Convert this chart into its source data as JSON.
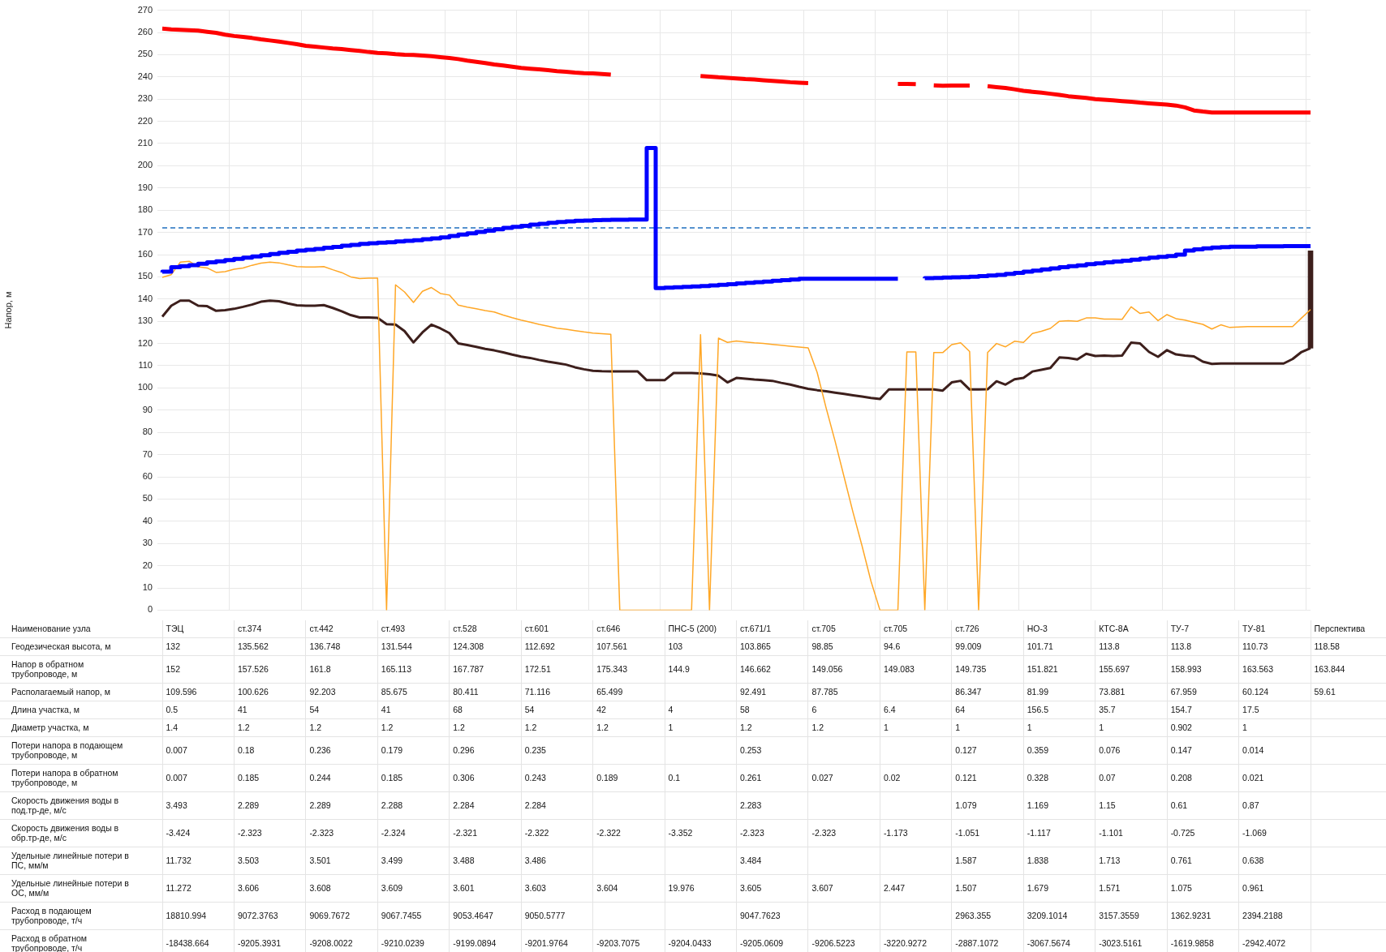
{
  "chart_data": [
    {
      "type": "line",
      "ylabel": "Напор, м",
      "grid": true,
      "ylim": [
        0,
        270
      ],
      "yticks": [
        0,
        10,
        20,
        30,
        40,
        50,
        60,
        70,
        80,
        90,
        100,
        110,
        120,
        130,
        140,
        150,
        160,
        170,
        180,
        190,
        200,
        210,
        220,
        230,
        240,
        250,
        260,
        270
      ],
      "ref_lines": [
        {
          "axis": "y",
          "value": 172,
          "color": "#1f6fbf",
          "line_style": "dashed"
        }
      ],
      "categories": [
        null,
        null,
        null,
        null,
        null,
        null,
        null,
        null,
        null,
        null,
        null,
        null,
        null,
        null,
        null,
        null,
        null,
        null,
        null,
        null,
        null,
        null,
        null,
        null,
        null,
        null,
        null,
        null,
        null,
        null,
        null,
        null,
        null,
        null,
        null,
        null,
        null,
        null,
        null,
        null,
        null,
        null,
        null,
        null,
        null,
        null,
        null,
        null,
        null,
        null,
        null,
        null,
        null,
        null,
        null,
        null,
        null,
        null,
        null,
        null,
        null,
        null,
        null,
        null,
        null,
        null,
        null,
        null,
        null,
        null,
        null,
        null,
        null,
        null,
        null,
        null,
        null,
        null,
        null,
        null,
        null,
        null,
        null,
        null,
        null,
        null,
        null,
        null,
        null,
        null,
        null,
        null,
        null,
        null,
        null,
        null,
        null,
        null,
        null,
        null,
        null,
        null,
        null,
        null,
        null,
        null,
        null,
        null,
        null,
        null,
        null,
        null,
        null,
        null,
        null,
        null,
        null,
        null,
        null,
        null,
        null,
        null,
        null,
        null,
        null,
        null,
        null,
        null,
        null
      ],
      "series": [
        {
          "color": "#ff0000",
          "values": [
            261.7,
            261.4,
            261.2,
            261.0,
            260.8,
            260.3,
            259.8,
            259.0,
            258.4,
            258.0,
            257.5,
            256.9,
            256.4,
            255.9,
            255.3,
            254.7,
            254.0,
            253.6,
            253.2,
            252.8,
            252.5,
            252.1,
            251.7,
            251.2,
            250.8,
            250.6,
            250.2,
            250.0,
            249.9,
            249.6,
            249.3,
            248.9,
            248.5,
            248.0,
            247.3,
            246.8,
            246.2,
            245.6,
            245.1,
            244.6,
            244.0,
            243.7,
            243.4,
            243.0,
            242.6,
            242.3,
            241.9,
            241.7,
            241.6,
            241.3,
            241.0,
            null,
            null,
            null,
            null,
            null,
            null,
            null,
            null,
            null,
            240.4,
            240.1,
            239.8,
            239.6,
            239.3,
            239.0,
            238.8,
            238.5,
            238.2,
            237.9,
            237.6,
            237.4,
            237.2,
            null,
            null,
            null,
            null,
            null,
            null,
            null,
            null,
            null,
            236.8,
            236.8,
            236.7,
            null,
            236.2,
            236.0,
            236.1,
            236.1,
            236.1,
            null,
            235.8,
            235.4,
            235.0,
            234.4,
            233.7,
            233.3,
            232.9,
            232.4,
            231.9,
            231.3,
            230.9,
            230.5,
            230.0,
            229.7,
            229.4,
            229.1,
            228.8,
            228.4,
            228.1,
            227.8,
            227.5,
            227.1,
            226.3,
            224.9,
            224.4,
            224.0,
            224.0,
            224.0,
            224.0,
            224.0,
            224.0,
            224.0,
            224.0,
            224.0,
            224.0,
            224.0,
            224.0
          ]
        },
        {
          "type": "step",
          "color": "#0000ff",
          "values": [
            152.0,
            152.3,
            154.3,
            154.8,
            155.3,
            155.9,
            156.5,
            157.0,
            157.5,
            158.1,
            158.6,
            159.2,
            159.7,
            160.3,
            160.8,
            161.3,
            161.8,
            162.2,
            162.6,
            163.1,
            163.5,
            164.0,
            164.4,
            164.8,
            165.1,
            165.4,
            165.6,
            165.9,
            166.2,
            166.5,
            166.9,
            167.3,
            167.8,
            168.4,
            169.0,
            169.6,
            170.2,
            170.8,
            171.4,
            172.0,
            172.5,
            173.0,
            173.5,
            173.9,
            174.3,
            174.7,
            175.0,
            175.2,
            175.3,
            175.5,
            175.6,
            175.7,
            175.7,
            175.8,
            175.8,
            208.0,
            144.9,
            145.1,
            145.3,
            145.5,
            145.7,
            145.9,
            146.1,
            146.4,
            146.7,
            147.0,
            147.3,
            147.6,
            147.9,
            148.2,
            148.5,
            148.8,
            149.1,
            149.1,
            149.1,
            149.1,
            149.1,
            149.1,
            149.1,
            149.1,
            149.1,
            149.1,
            149.1,
            null,
            null,
            149.3,
            149.4,
            149.5,
            149.7,
            149.8,
            149.9,
            150.1,
            150.3,
            150.6,
            150.9,
            151.3,
            151.8,
            152.3,
            152.8,
            153.3,
            153.8,
            154.3,
            154.8,
            155.2,
            155.7,
            156.1,
            156.5,
            156.9,
            157.3,
            157.7,
            158.2,
            158.6,
            159.0,
            159.4,
            160.0,
            161.8,
            162.4,
            162.8,
            163.2,
            163.4,
            163.6,
            163.6,
            163.6,
            163.7,
            163.7,
            163.7,
            163.8,
            163.8,
            163.8
          ]
        },
        {
          "color": "#ffa726",
          "values": [
            149.8,
            151.0,
            156.6,
            157.0,
            154.5,
            154.0,
            152.0,
            152.3,
            153.4,
            154.0,
            155.2,
            156.2,
            156.6,
            156.3,
            155.4,
            154.6,
            154.4,
            154.4,
            154.6,
            153.2,
            151.9,
            150.0,
            149.2,
            149.4,
            149.4,
            0,
            146.4,
            143.2,
            138.5,
            143.5,
            145.2,
            142.5,
            141.8,
            137.3,
            136.4,
            135.6,
            134.8,
            134.2,
            132.8,
            131.6,
            130.5,
            129.6,
            128.6,
            127.8,
            126.9,
            126.4,
            125.8,
            125.2,
            124.7,
            124.4,
            124.1,
            0,
            0,
            0,
            0,
            0,
            0,
            0,
            0,
            0,
            124.0,
            0,
            122.4,
            120.5,
            121.1,
            120.7,
            120.3,
            120.0,
            119.6,
            119.2,
            118.8,
            118.4,
            118.0,
            107,
            91,
            76,
            60,
            44,
            29,
            13,
            0,
            0,
            0,
            116.2,
            116.2,
            0,
            115.9,
            115.9,
            119.5,
            120.3,
            116.4,
            0,
            115.9,
            120.0,
            118.5,
            121.0,
            120.5,
            124.5,
            125.5,
            126.8,
            130.0,
            130.3,
            130.0,
            131.5,
            131.5,
            131.0,
            131.0,
            130.9,
            136.5,
            133.5,
            134.2,
            130.3,
            133.0,
            131.2,
            130.5,
            129.5,
            128.6,
            126.5,
            128.4,
            127.2,
            127.4,
            127.6,
            127.6,
            127.6,
            127.6,
            127.6,
            127.6,
            131.5,
            135.3
          ]
        },
        {
          "color": "#3d1f1c",
          "values": [
            132.1,
            137.0,
            139.3,
            139.3,
            137.0,
            136.8,
            134.7,
            135.0,
            135.6,
            136.5,
            137.5,
            138.8,
            139.3,
            139.0,
            138.0,
            137.2,
            137.0,
            137.0,
            137.3,
            136.0,
            134.5,
            132.8,
            131.7,
            131.7,
            131.5,
            128.7,
            128.5,
            125.6,
            120.5,
            125.0,
            128.5,
            126.8,
            124.7,
            120.0,
            119.3,
            118.5,
            117.6,
            116.9,
            116.0,
            115.0,
            114.1,
            113.5,
            112.6,
            111.8,
            111.2,
            110.5,
            109.3,
            108.4,
            107.7,
            107.5,
            107.4,
            107.4,
            107.4,
            107.4,
            103.5,
            103.5,
            103.5,
            106.7,
            106.7,
            106.7,
            106.5,
            106.2,
            105.5,
            102.5,
            104.5,
            104.2,
            103.8,
            103.5,
            103.2,
            102.3,
            101.5,
            100.5,
            99.6,
            99.0,
            98.5,
            97.9,
            97.3,
            96.7,
            96.1,
            95.5,
            95.0,
            99.3,
            99.3,
            99.3,
            99.3,
            99.3,
            99.3,
            98.8,
            102.5,
            103.2,
            99.3,
            99.3,
            99.4,
            103.0,
            101.5,
            103.9,
            104.5,
            107.4,
            108.2,
            109.0,
            113.7,
            113.5,
            112.8,
            115.4,
            114.4,
            114.6,
            114.4,
            114.6,
            120.4,
            120.0,
            116.2,
            114.0,
            117.0,
            115.1,
            114.6,
            114.2,
            111.8,
            110.8,
            111.0,
            111.0,
            111.0,
            111.0,
            111.0,
            111.0,
            111.0,
            111.0,
            113.0,
            116.2,
            117.9
          ]
        },
        {
          "type": "bar",
          "color": "#3d1f1c",
          "values": [
            null,
            null,
            null,
            null,
            null,
            null,
            null,
            null,
            null,
            null,
            null,
            null,
            null,
            null,
            null,
            null,
            null,
            null,
            null,
            null,
            null,
            null,
            null,
            null,
            null,
            null,
            null,
            null,
            null,
            null,
            null,
            null,
            null,
            null,
            null,
            null,
            null,
            null,
            null,
            null,
            null,
            null,
            null,
            null,
            null,
            null,
            null,
            null,
            null,
            null,
            null,
            null,
            null,
            null,
            null,
            null,
            null,
            null,
            null,
            null,
            null,
            null,
            null,
            null,
            null,
            null,
            null,
            null,
            null,
            null,
            null,
            null,
            null,
            null,
            null,
            null,
            null,
            null,
            null,
            null,
            null,
            null,
            null,
            null,
            null,
            null,
            null,
            null,
            null,
            null,
            null,
            null,
            null,
            null,
            null,
            null,
            null,
            null,
            null,
            null,
            null,
            null,
            null,
            null,
            null,
            null,
            null,
            null,
            null,
            null,
            null,
            null,
            null,
            null,
            null,
            null,
            null,
            null,
            null,
            null,
            null,
            null,
            null,
            null,
            null,
            null,
            null,
            null,
            43.8
          ],
          "base": [
            null,
            null,
            null,
            null,
            null,
            null,
            null,
            null,
            null,
            null,
            null,
            null,
            null,
            null,
            null,
            null,
            null,
            null,
            null,
            null,
            null,
            null,
            null,
            null,
            null,
            null,
            null,
            null,
            null,
            null,
            null,
            null,
            null,
            null,
            null,
            null,
            null,
            null,
            null,
            null,
            null,
            null,
            null,
            null,
            null,
            null,
            null,
            null,
            null,
            null,
            null,
            null,
            null,
            null,
            null,
            null,
            null,
            null,
            null,
            null,
            null,
            null,
            null,
            null,
            null,
            null,
            null,
            null,
            null,
            null,
            null,
            null,
            null,
            null,
            null,
            null,
            null,
            null,
            null,
            null,
            null,
            null,
            null,
            null,
            null,
            null,
            null,
            null,
            null,
            null,
            null,
            null,
            null,
            null,
            null,
            null,
            null,
            null,
            null,
            null,
            null,
            null,
            null,
            null,
            null,
            null,
            null,
            null,
            null,
            null,
            null,
            null,
            null,
            null,
            null,
            null,
            null,
            null,
            null,
            null,
            null,
            null,
            null,
            null,
            null,
            null,
            null,
            null,
            117.9
          ]
        }
      ]
    },
    {
      "type": "other",
      "data_labels": true,
      "xlabel": "Наименование узла",
      "categories": [
        "ТЭЦ",
        "ст.374",
        "ст.442",
        "ст.493",
        "ст.528",
        "ст.601",
        "ст.646",
        "ПНС-5 (200)",
        "ст.671/1",
        "ст.705",
        "ст.705",
        "ст.726",
        "НО-3",
        "КТС-8А",
        "ТУ-7",
        "ТУ-81",
        "Перспектива"
      ],
      "series": [
        {
          "name": "Геодезическая высота, м",
          "values": [
            132,
            135.562,
            136.748,
            131.544,
            124.308,
            112.692,
            107.561,
            103,
            103.865,
            98.85,
            94.6,
            99.009,
            101.71,
            113.8,
            113.8,
            110.73,
            118.58
          ]
        },
        {
          "name": "Напор в обратном трубопроводе, м",
          "values": [
            152,
            157.526,
            161.8,
            165.113,
            167.787,
            172.51,
            175.343,
            144.9,
            146.662,
            149.056,
            149.083,
            149.735,
            151.821,
            155.697,
            158.993,
            163.563,
            163.844
          ]
        },
        {
          "name": "Располагаемый напор, м",
          "values": [
            109.596,
            100.626,
            92.203,
            85.675,
            80.411,
            71.116,
            65.499,
            null,
            92.491,
            87.785,
            null,
            86.347,
            81.99,
            73.881,
            67.959,
            60.124,
            59.61
          ]
        },
        {
          "name": "Длина участка, м",
          "values": [
            0.5,
            41,
            54,
            41,
            68,
            54,
            42,
            4,
            58,
            6,
            6.4,
            64,
            156.5,
            35.7,
            154.7,
            17.5,
            null
          ]
        },
        {
          "name": "Диаметр участка, м",
          "values": [
            1.4,
            1.2,
            1.2,
            1.2,
            1.2,
            1.2,
            1.2,
            1,
            1.2,
            1.2,
            1,
            1,
            1,
            1,
            0.902,
            1,
            null
          ]
        },
        {
          "name": "Потери напора в подающем трубопроводе, м",
          "values": [
            0.007,
            0.18,
            0.236,
            0.179,
            0.296,
            0.235,
            null,
            null,
            0.253,
            null,
            null,
            0.127,
            0.359,
            0.076,
            0.147,
            0.014,
            null
          ]
        },
        {
          "name": "Потери напора в обратном трубопроводе, м",
          "values": [
            0.007,
            0.185,
            0.244,
            0.185,
            0.306,
            0.243,
            0.189,
            0.1,
            0.261,
            0.027,
            0.02,
            0.121,
            0.328,
            0.07,
            0.208,
            0.021,
            null
          ]
        },
        {
          "name": "Скорость движения воды в под.тр-де, м/с",
          "values": [
            3.493,
            2.289,
            2.289,
            2.288,
            2.284,
            2.284,
            null,
            null,
            2.283,
            null,
            null,
            1.079,
            1.169,
            1.15,
            0.61,
            0.87,
            null
          ]
        },
        {
          "name": "Скорость движения воды в обр.тр-де, м/с",
          "values": [
            -3.424,
            -2.323,
            -2.323,
            -2.324,
            -2.321,
            -2.322,
            -2.322,
            -3.352,
            -2.323,
            -2.323,
            -1.173,
            -1.051,
            -1.117,
            -1.101,
            -0.725,
            -1.069,
            null
          ]
        },
        {
          "name": "Удельные линейные потери в ПС, мм/м",
          "values": [
            11.732,
            3.503,
            3.501,
            3.499,
            3.488,
            3.486,
            null,
            null,
            3.484,
            null,
            null,
            1.587,
            1.838,
            1.713,
            0.761,
            0.638,
            null
          ]
        },
        {
          "name": "Удельные линейные потери в ОС, мм/м",
          "values": [
            11.272,
            3.606,
            3.608,
            3.609,
            3.601,
            3.603,
            3.604,
            19.976,
            3.605,
            3.607,
            2.447,
            1.507,
            1.679,
            1.571,
            1.075,
            0.961,
            null
          ]
        },
        {
          "name": "Расход в подающем трубопроводе, т/ч",
          "values": [
            18810.994,
            9072.3763,
            9069.7672,
            9067.7455,
            9053.4647,
            9050.5777,
            null,
            null,
            9047.7623,
            null,
            null,
            2963.355,
            3209.1014,
            3157.3559,
            1362.9231,
            2394.2188,
            null
          ]
        },
        {
          "name": "Расход в обратном трубопроводе, т/ч",
          "values": [
            -18438.664,
            -9205.3931,
            -9208.0022,
            -9210.0239,
            -9199.0894,
            -9201.9764,
            -9203.7075,
            -9204.0433,
            -9205.0609,
            -9206.5223,
            -3220.9272,
            -2887.1072,
            -3067.5674,
            -3023.5161,
            -1619.9858,
            -2942.4072,
            null
          ]
        }
      ]
    }
  ]
}
